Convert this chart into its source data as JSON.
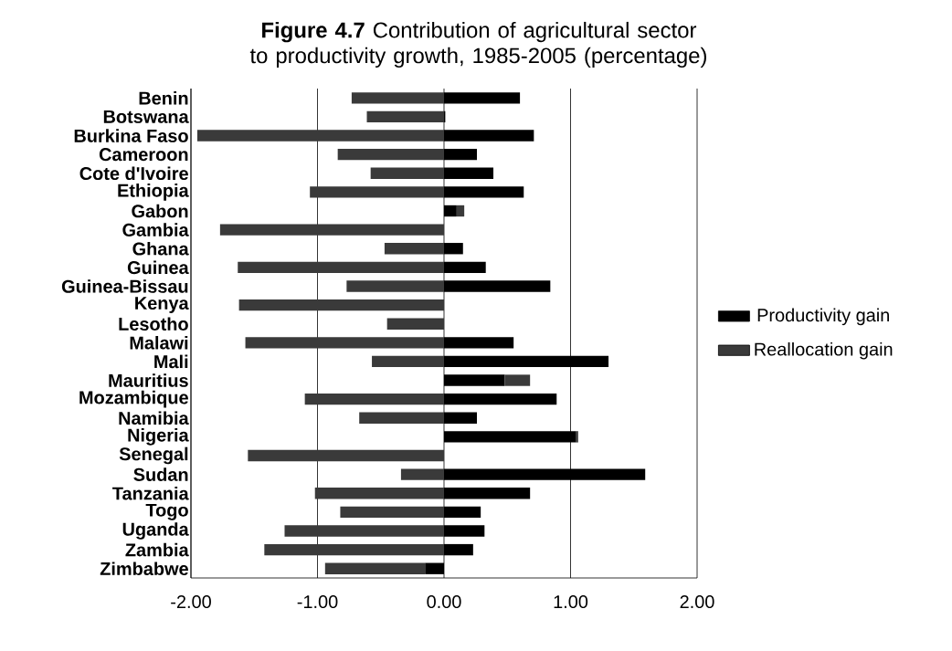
{
  "chart_data": {
    "type": "bar",
    "orientation": "horizontal",
    "stacked": true,
    "title": "**Figure 4.7** Contribution of agricultural sector to productivity growth, 1985-2005 (percentage)",
    "categories": [
      "Benin",
      "Botswana",
      "Burkina Faso",
      "Cameroon",
      "Cote d'Ivoire",
      "Ethiopia",
      "Gabon",
      "Gambia",
      "Ghana",
      "Guinea",
      "Guinea-Bissau",
      "Kenya",
      "Lesotho",
      "Malawi",
      "Mali",
      "Mauritius",
      "Mozambique",
      "Namibia",
      "Nigeria",
      "Senegal",
      "Sudan",
      "Tanzania",
      "Togo",
      "Uganda",
      "Zambia",
      "Zimbabwe"
    ],
    "series": [
      {
        "name": "Productivity gain",
        "color": "#000000",
        "values": [
          0.6,
          0.01,
          0.71,
          0.26,
          0.39,
          0.63,
          0.1,
          0,
          0.15,
          0.33,
          0.84,
          0,
          0,
          0.55,
          1.3,
          0.48,
          0.89,
          0.26,
          1.04,
          0,
          1.59,
          0.68,
          0.29,
          0.32,
          0.23,
          -0.15
        ]
      },
      {
        "name": "Reallocation gain",
        "color": "#3a3a3a",
        "values": [
          -0.73,
          -0.61,
          -1.95,
          -0.84,
          -0.58,
          -1.06,
          0.06,
          -1.77,
          -0.47,
          -1.63,
          -0.77,
          -1.62,
          -0.45,
          -1.57,
          -0.57,
          0.2,
          -1.1,
          -0.67,
          0.02,
          -1.55,
          -0.34,
          -1.02,
          -0.82,
          -1.26,
          -1.42,
          -0.79
        ]
      }
    ],
    "xlim": [
      -2,
      2
    ],
    "xticks": [
      {
        "value": -2,
        "label": "-2.00"
      },
      {
        "value": -1,
        "label": "-1.00"
      },
      {
        "value": 0,
        "label": "0.00"
      },
      {
        "value": 1,
        "label": "1.00"
      },
      {
        "value": 2,
        "label": "2.00"
      }
    ],
    "grid": "x",
    "legend": "right"
  }
}
